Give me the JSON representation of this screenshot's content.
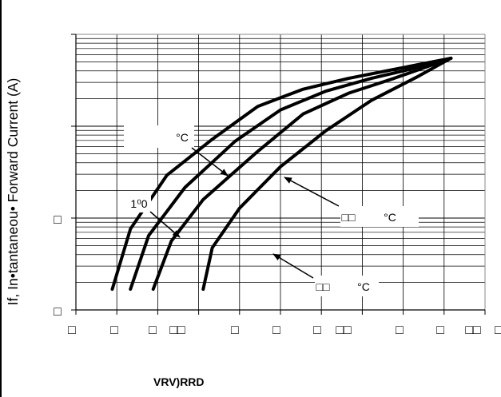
{
  "chart_data": {
    "type": "line",
    "ylabel": "If, In•tantaneou• Forward Current (A)",
    "xlabel": "VRV)RRD",
    "yscale": "log",
    "grid": true,
    "x_tick_labels": [
      "□",
      "□",
      "□",
      "□□",
      "□",
      "□",
      "□",
      "□□",
      "□",
      "□",
      "□□",
      "□"
    ],
    "y_tick_labels": [
      "□",
      "□"
    ],
    "series": [
      {
        "label": "°C",
        "points": [
          [
            0.16,
            0.002
          ],
          [
            0.24,
            0.015
          ],
          [
            0.4,
            0.09
          ],
          [
            0.6,
            0.3
          ],
          [
            0.8,
            0.9
          ],
          [
            1.0,
            1.6
          ],
          [
            1.2,
            2.3
          ],
          [
            1.4,
            3.1
          ],
          [
            1.65,
            4.5
          ]
        ]
      },
      {
        "label": "1⁰0",
        "points": [
          [
            0.24,
            0.002
          ],
          [
            0.32,
            0.012
          ],
          [
            0.48,
            0.06
          ],
          [
            0.7,
            0.28
          ],
          [
            0.9,
            0.8
          ],
          [
            1.1,
            1.5
          ],
          [
            1.3,
            2.3
          ],
          [
            1.45,
            3.0
          ],
          [
            1.65,
            4.5
          ]
        ]
      },
      {
        "label": "°C",
        "points": [
          [
            0.34,
            0.002
          ],
          [
            0.42,
            0.01
          ],
          [
            0.56,
            0.04
          ],
          [
            0.8,
            0.2
          ],
          [
            1.0,
            0.7
          ],
          [
            1.2,
            1.4
          ],
          [
            1.4,
            2.3
          ],
          [
            1.65,
            4.5
          ]
        ]
      },
      {
        "label": "°C",
        "points": [
          [
            0.56,
            0.002
          ],
          [
            0.6,
            0.008
          ],
          [
            0.72,
            0.03
          ],
          [
            0.9,
            0.12
          ],
          [
            1.1,
            0.4
          ],
          [
            1.3,
            1.1
          ],
          [
            1.5,
            2.4
          ],
          [
            1.65,
            4.5
          ]
        ]
      }
    ],
    "annotations": [
      {
        "text": "°C",
        "prefix": ""
      },
      {
        "text": "1⁰0",
        "prefix": ""
      },
      {
        "text": "°C",
        "prefix": "□□"
      },
      {
        "text": "°C",
        "prefix": "□□"
      }
    ]
  }
}
